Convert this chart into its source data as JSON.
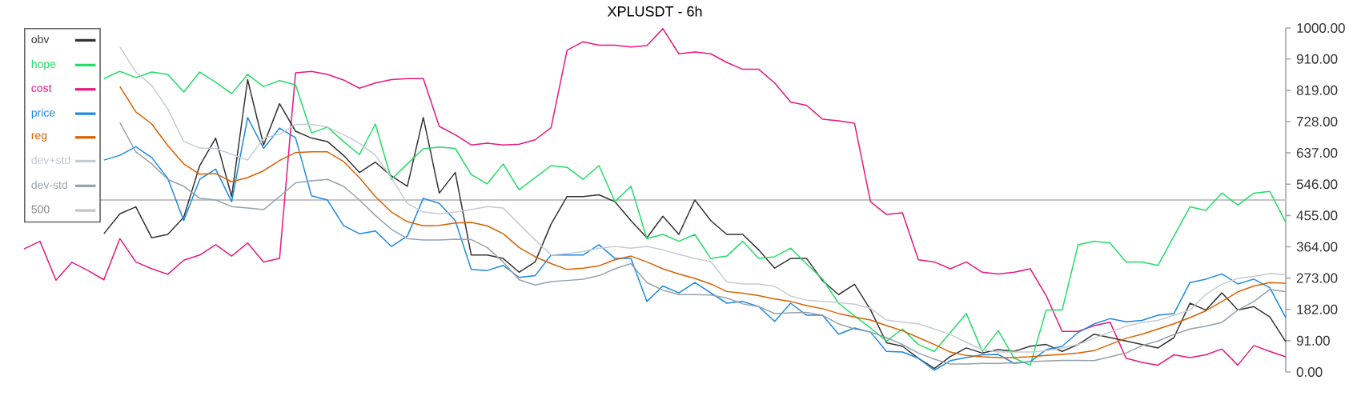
{
  "chart_data": {
    "type": "line",
    "title": "XPLUSDT - 6h",
    "categories": [
      null,
      null,
      null,
      null,
      null,
      null,
      null,
      null,
      null,
      null,
      null,
      null,
      null,
      null,
      null,
      null,
      null,
      null,
      null,
      null,
      null,
      null,
      null,
      null,
      null,
      null,
      null,
      null,
      null,
      null,
      null,
      null,
      null,
      null,
      null,
      null,
      null,
      null,
      null,
      null,
      null,
      null,
      null,
      null,
      null,
      null,
      null,
      null,
      null,
      null,
      null,
      null,
      null,
      null,
      null,
      null,
      null,
      null,
      null,
      null,
      null,
      null,
      null,
      null,
      null,
      null,
      null,
      null,
      null,
      null,
      null,
      null,
      null,
      null,
      null,
      null,
      null,
      null,
      null,
      null
    ],
    "series": [
      {
        "name": "obv",
        "color": "#333333",
        "values": [
          null,
          null,
          null,
          null,
          null,
          402,
          460,
          480,
          390,
          400,
          450,
          600,
          680,
          510,
          850,
          660,
          780,
          700,
          680,
          670,
          630,
          580,
          610,
          570,
          540,
          740,
          520,
          580,
          340,
          340,
          330,
          290,
          320,
          430,
          510,
          510,
          515,
          495,
          440,
          390,
          453,
          400,
          500,
          440,
          400,
          400,
          355,
          302,
          330,
          330,
          265,
          225,
          255,
          181,
          85,
          75,
          40,
          10,
          45,
          70,
          55,
          65,
          60,
          75,
          80,
          60,
          80,
          110,
          100,
          90,
          80,
          70,
          100,
          200,
          180,
          230,
          180,
          190,
          160,
          88
        ]
      },
      {
        "name": "hope",
        "color": "#22dd66",
        "values": [
          null,
          null,
          null,
          null,
          null,
          853,
          874,
          856,
          872,
          865,
          814,
          872,
          842,
          809,
          865,
          830,
          847,
          835,
          695,
          712,
          670,
          632,
          721,
          560,
          605,
          649,
          654,
          650,
          574,
          547,
          605,
          530,
          565,
          600,
          595,
          560,
          600,
          495,
          540,
          388,
          400,
          380,
          400,
          330,
          337,
          380,
          330,
          335,
          360,
          314,
          270,
          200,
          163,
          128,
          90,
          125,
          80,
          60,
          115,
          170,
          60,
          120,
          40,
          20,
          180,
          180,
          370,
          380,
          375,
          320,
          320,
          310,
          395,
          480,
          470,
          520,
          485,
          520,
          525,
          435
        ]
      },
      {
        "name": "cost",
        "color": "#e8177d",
        "values": [
          358,
          380,
          267,
          319,
          295,
          268,
          388,
          320,
          300,
          284,
          325,
          340,
          370,
          337,
          375,
          320,
          330,
          870,
          874,
          865,
          849,
          825,
          840,
          850,
          853,
          853,
          714,
          690,
          660,
          665,
          660,
          662,
          675,
          710,
          935,
          960,
          950,
          950,
          945,
          949,
          998,
          925,
          930,
          925,
          900,
          880,
          880,
          840,
          785,
          775,
          735,
          730,
          723,
          495,
          458,
          463,
          326,
          320,
          300,
          320,
          290,
          285,
          290,
          300,
          222,
          118,
          118,
          135,
          145,
          40,
          28,
          20,
          50,
          42,
          50,
          67,
          20,
          77,
          60,
          44
        ]
      },
      {
        "name": "price",
        "color": "#1e88e5",
        "values": [
          null,
          null,
          null,
          null,
          null,
          616,
          630,
          655,
          623,
          563,
          440,
          560,
          590,
          495,
          740,
          650,
          709,
          681,
          512,
          500,
          426,
          402,
          410,
          365,
          395,
          505,
          490,
          440,
          298,
          295,
          310,
          275,
          280,
          340,
          340,
          340,
          370,
          330,
          330,
          205,
          250,
          230,
          260,
          230,
          200,
          205,
          190,
          147,
          200,
          165,
          165,
          110,
          128,
          116,
          60,
          58,
          40,
          5,
          33,
          42,
          50,
          51,
          25,
          30,
          65,
          75,
          115,
          140,
          155,
          146,
          150,
          165,
          170,
          260,
          270,
          285,
          256,
          270,
          245,
          158
        ]
      },
      {
        "name": "reg",
        "color": "#d96000",
        "values": [
          null,
          null,
          null,
          null,
          null,
          null,
          830,
          756,
          721,
          658,
          605,
          575,
          577,
          553,
          565,
          585,
          615,
          638,
          640,
          640,
          612,
          565,
          510,
          465,
          437,
          425,
          426,
          433,
          435,
          425,
          402,
          362,
          335,
          315,
          298,
          302,
          309,
          326,
          337,
          320,
          300,
          285,
          272,
          256,
          234,
          229,
          222,
          212,
          205,
          193,
          184,
          170,
          160,
          151,
          135,
          120,
          100,
          80,
          58,
          48,
          44,
          42,
          42,
          44,
          48,
          51,
          55,
          62,
          80,
          98,
          110,
          125,
          140,
          158,
          178,
          205,
          233,
          250,
          260,
          258
        ]
      },
      {
        "name": "dev+std",
        "color": "#c5ccd2",
        "values": [
          null,
          null,
          null,
          null,
          null,
          null,
          945,
          872,
          833,
          765,
          670,
          651,
          650,
          633,
          616,
          680,
          691,
          720,
          720,
          712,
          690,
          665,
          630,
          565,
          490,
          465,
          460,
          465,
          472,
          481,
          477,
          430,
          384,
          340,
          344,
          350,
          360,
          365,
          360,
          365,
          355,
          342,
          330,
          321,
          262,
          256,
          256,
          249,
          221,
          209,
          205,
          202,
          197,
          185,
          151,
          145,
          140,
          125,
          109,
          86,
          65,
          58,
          58,
          58,
          62,
          70,
          80,
          98,
          116,
          133,
          144,
          150,
          165,
          180,
          226,
          255,
          272,
          278,
          286,
          284
        ]
      },
      {
        "name": "dev-std",
        "color": "#97a1aa",
        "values": [
          null,
          null,
          null,
          null,
          null,
          null,
          725,
          640,
          605,
          560,
          540,
          505,
          500,
          481,
          477,
          472,
          510,
          550,
          556,
          560,
          540,
          500,
          455,
          415,
          388,
          384,
          384,
          386,
          385,
          362,
          320,
          268,
          253,
          263,
          266,
          270,
          280,
          300,
          315,
          260,
          238,
          225,
          225,
          224,
          215,
          198,
          190,
          170,
          172,
          173,
          165,
          140,
          125,
          116,
          100,
          80,
          55,
          37,
          23,
          23,
          25,
          25,
          27,
          30,
          32,
          34,
          34,
          33,
          44,
          55,
          77,
          90,
          109,
          125,
          133,
          144,
          180,
          205,
          240,
          233
        ]
      }
    ],
    "ylim": [
      0,
      1000
    ],
    "yticks": [
      {
        "value": 0,
        "label": "0.00"
      },
      {
        "value": 91,
        "label": "91.00"
      },
      {
        "value": 182,
        "label": "182.00"
      },
      {
        "value": 273,
        "label": "273.00"
      },
      {
        "value": 364,
        "label": "364.00"
      },
      {
        "value": 455,
        "label": "455.00"
      },
      {
        "value": 546,
        "label": "546.00"
      },
      {
        "value": 637,
        "label": "637.00"
      },
      {
        "value": 728,
        "label": "728.00"
      },
      {
        "value": 819,
        "label": "819.00"
      },
      {
        "value": 910,
        "label": "910.00"
      },
      {
        "value": 1000,
        "label": "1000.00"
      }
    ],
    "ref_lines": [
      {
        "axis": "y",
        "value": 500,
        "label": "500",
        "color": "#c4c4c4"
      }
    ],
    "legend": "top left"
  }
}
